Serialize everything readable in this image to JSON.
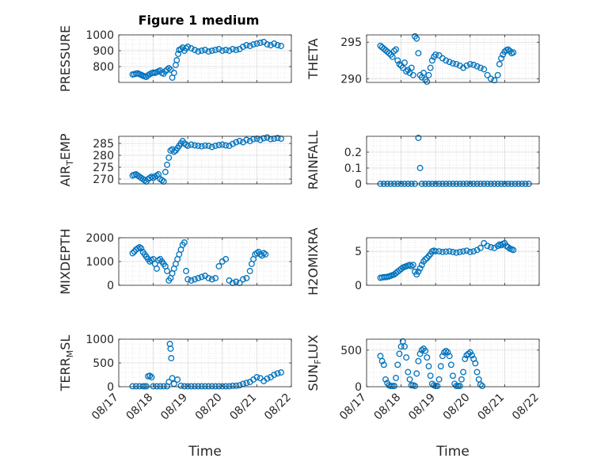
{
  "figure": {
    "title": "Figure 1 medium",
    "marker_color": "#0072BD",
    "x_tick_labels": [
      "08/17",
      "08/18",
      "08/19",
      "08/20",
      "08/21",
      "08/22"
    ],
    "x_label": "Time"
  },
  "chart_data": [
    {
      "type": "scatter",
      "title": "Figure 1 medium",
      "ylabel": "PRESSURE",
      "xlim": [
        17,
        22
      ],
      "ylim": [
        700,
        1000
      ],
      "yticks": [
        800,
        900,
        1000
      ],
      "grid": true,
      "x": [
        17.4,
        17.45,
        17.5,
        17.55,
        17.6,
        17.65,
        17.7,
        17.75,
        17.8,
        17.85,
        17.9,
        17.95,
        18.0,
        18.05,
        18.1,
        18.15,
        18.2,
        18.25,
        18.3,
        18.35,
        18.4,
        18.45,
        18.5,
        18.55,
        18.6,
        18.65,
        18.68,
        18.72,
        18.75,
        18.8,
        18.85,
        18.9,
        18.95,
        19.0,
        19.1,
        19.2,
        19.3,
        19.4,
        19.5,
        19.6,
        19.7,
        19.8,
        19.9,
        20.0,
        20.1,
        20.2,
        20.3,
        20.4,
        20.5,
        20.6,
        20.7,
        20.8,
        20.9,
        21.0,
        21.1,
        21.2,
        21.3,
        21.4,
        21.5,
        21.6,
        21.7
      ],
      "y": [
        750,
        752,
        755,
        758,
        752,
        748,
        742,
        738,
        735,
        745,
        752,
        758,
        762,
        760,
        765,
        770,
        775,
        760,
        755,
        770,
        780,
        790,
        780,
        730,
        760,
        810,
        840,
        880,
        905,
        910,
        920,
        900,
        915,
        925,
        915,
        905,
        895,
        900,
        905,
        895,
        900,
        905,
        910,
        900,
        905,
        900,
        910,
        905,
        910,
        925,
        935,
        930,
        940,
        945,
        950,
        955,
        940,
        935,
        945,
        935,
        930
      ]
    },
    {
      "type": "scatter",
      "ylabel": "THETA",
      "xlim": [
        17,
        22
      ],
      "ylim": [
        289.5,
        296
      ],
      "yticks": [
        290,
        295
      ],
      "grid": true,
      "x": [
        17.4,
        17.45,
        17.5,
        17.55,
        17.6,
        17.65,
        17.7,
        17.75,
        17.8,
        17.85,
        17.9,
        17.95,
        18.0,
        18.05,
        18.1,
        18.15,
        18.2,
        18.25,
        18.3,
        18.35,
        18.4,
        18.45,
        18.5,
        18.55,
        18.6,
        18.65,
        18.7,
        18.75,
        18.8,
        18.85,
        18.9,
        18.95,
        19.0,
        19.1,
        19.2,
        19.3,
        19.4,
        19.5,
        19.6,
        19.7,
        19.8,
        19.9,
        20.0,
        20.1,
        20.2,
        20.3,
        20.4,
        20.5,
        20.6,
        20.7,
        20.8,
        20.85,
        20.9,
        20.95,
        21.0,
        21.05,
        21.1,
        21.15,
        21.2,
        21.25
      ],
      "y": [
        294.5,
        294.3,
        294.1,
        293.9,
        293.7,
        293.5,
        293.3,
        293.0,
        293.8,
        294.0,
        292.5,
        292.0,
        291.8,
        291.5,
        292.2,
        291.0,
        291.2,
        290.8,
        291.5,
        290.5,
        295.8,
        295.5,
        293.5,
        290.5,
        290.2,
        290.8,
        289.9,
        289.6,
        290.5,
        291.5,
        292.5,
        293.0,
        293.3,
        293.2,
        292.8,
        292.5,
        292.3,
        292.1,
        292.0,
        291.8,
        291.5,
        291.8,
        292.0,
        291.9,
        291.7,
        291.5,
        291.3,
        290.5,
        290.0,
        289.8,
        290.5,
        292.0,
        292.8,
        293.3,
        293.7,
        293.9,
        294.0,
        293.8,
        293.5,
        293.6
      ]
    },
    {
      "type": "scatter",
      "ylabel": "AIR_TEMP",
      "xlim": [
        17,
        22
      ],
      "ylim": [
        268,
        288
      ],
      "yticks": [
        270,
        275,
        280,
        285
      ],
      "grid": true,
      "x": [
        17.4,
        17.45,
        17.5,
        17.55,
        17.6,
        17.65,
        17.7,
        17.75,
        17.8,
        17.85,
        17.9,
        17.95,
        18.0,
        18.05,
        18.1,
        18.15,
        18.2,
        18.25,
        18.3,
        18.35,
        18.4,
        18.45,
        18.5,
        18.55,
        18.6,
        18.65,
        18.7,
        18.75,
        18.8,
        18.85,
        18.9,
        18.95,
        19.0,
        19.1,
        19.2,
        19.3,
        19.4,
        19.5,
        19.6,
        19.7,
        19.8,
        19.9,
        20.0,
        20.1,
        20.2,
        20.3,
        20.4,
        20.5,
        20.6,
        20.7,
        20.8,
        20.9,
        21.0,
        21.1,
        21.2,
        21.3,
        21.4,
        21.5,
        21.6,
        21.7
      ],
      "y": [
        271.5,
        271.8,
        272.0,
        271.5,
        271.0,
        270.5,
        270.0,
        269.5,
        269.0,
        270.0,
        270.5,
        271.0,
        270.5,
        271.0,
        271.5,
        272.0,
        270.0,
        269.5,
        269.0,
        273.0,
        276.0,
        279.0,
        282.0,
        282.5,
        281.5,
        282.0,
        283.0,
        284.0,
        285.0,
        286.0,
        285.0,
        284.5,
        284.0,
        284.5,
        284.2,
        284.0,
        283.8,
        284.1,
        284.0,
        283.5,
        284.0,
        284.3,
        284.5,
        284.2,
        284.0,
        284.8,
        285.5,
        286.0,
        285.5,
        286.5,
        286.0,
        286.8,
        287.0,
        286.5,
        287.2,
        287.5,
        286.8,
        287.0,
        287.3,
        287.0
      ]
    },
    {
      "type": "scatter",
      "ylabel": "RAINFALL",
      "xlim": [
        17,
        22
      ],
      "ylim": [
        0,
        0.3
      ],
      "yticks": [
        0,
        0.1,
        0.2
      ],
      "grid": true,
      "x": [
        17.4,
        17.5,
        17.6,
        17.7,
        17.8,
        17.9,
        18.0,
        18.1,
        18.2,
        18.3,
        18.4,
        18.5,
        18.55,
        18.6,
        18.7,
        18.8,
        18.9,
        19.0,
        19.1,
        19.2,
        19.3,
        19.4,
        19.5,
        19.6,
        19.7,
        19.8,
        19.9,
        20.0,
        20.1,
        20.2,
        20.3,
        20.4,
        20.5,
        20.6,
        20.7,
        20.8,
        20.9,
        21.0,
        21.1,
        21.2,
        21.3,
        21.4,
        21.5,
        21.6,
        21.7
      ],
      "y": [
        0,
        0,
        0,
        0,
        0,
        0,
        0,
        0,
        0,
        0,
        0,
        0.29,
        0.1,
        0,
        0,
        0,
        0,
        0,
        0,
        0,
        0,
        0,
        0,
        0,
        0,
        0,
        0,
        0,
        0,
        0,
        0,
        0,
        0,
        0,
        0,
        0,
        0,
        0,
        0,
        0,
        0,
        0,
        0,
        0,
        0
      ]
    },
    {
      "type": "scatter",
      "ylabel": "MIXDEPTH",
      "xlim": [
        17,
        22
      ],
      "ylim": [
        0,
        2000
      ],
      "yticks": [
        0,
        1000,
        2000
      ],
      "grid": true,
      "x": [
        17.4,
        17.45,
        17.5,
        17.55,
        17.6,
        17.65,
        17.7,
        17.75,
        17.8,
        17.85,
        17.9,
        17.95,
        18.0,
        18.05,
        18.1,
        18.15,
        18.2,
        18.25,
        18.3,
        18.35,
        18.4,
        18.45,
        18.5,
        18.55,
        18.6,
        18.65,
        18.7,
        18.75,
        18.8,
        18.85,
        18.9,
        18.95,
        19.0,
        19.1,
        19.2,
        19.3,
        19.4,
        19.5,
        19.6,
        19.7,
        19.8,
        19.9,
        20.0,
        20.1,
        20.2,
        20.3,
        20.4,
        20.5,
        20.6,
        20.7,
        20.8,
        20.85,
        20.9,
        20.95,
        21.0,
        21.05,
        21.1,
        21.15,
        21.2,
        21.25
      ],
      "y": [
        1350,
        1420,
        1500,
        1550,
        1600,
        1550,
        1400,
        1300,
        1200,
        1100,
        1000,
        1050,
        1100,
        900,
        700,
        1050,
        1100,
        1000,
        900,
        800,
        600,
        200,
        300,
        500,
        700,
        900,
        1100,
        1300,
        1500,
        1700,
        1800,
        600,
        250,
        200,
        250,
        300,
        350,
        400,
        300,
        250,
        300,
        800,
        1000,
        1100,
        200,
        100,
        150,
        100,
        250,
        300,
        600,
        900,
        1100,
        1300,
        1350,
        1400,
        1300,
        1250,
        1350,
        1300
      ]
    },
    {
      "type": "scatter",
      "ylabel": "H2OMIXRA",
      "xlim": [
        17,
        22
      ],
      "ylim": [
        0,
        7
      ],
      "yticks": [
        0,
        5
      ],
      "grid": true,
      "x": [
        17.4,
        17.45,
        17.5,
        17.55,
        17.6,
        17.65,
        17.7,
        17.75,
        17.8,
        17.85,
        17.9,
        17.95,
        18.0,
        18.05,
        18.1,
        18.15,
        18.2,
        18.25,
        18.3,
        18.35,
        18.4,
        18.45,
        18.5,
        18.55,
        18.6,
        18.65,
        18.7,
        18.75,
        18.8,
        18.85,
        18.9,
        18.95,
        19.0,
        19.1,
        19.2,
        19.3,
        19.4,
        19.5,
        19.6,
        19.7,
        19.8,
        19.9,
        20.0,
        20.1,
        20.2,
        20.3,
        20.4,
        20.5,
        20.6,
        20.7,
        20.8,
        20.85,
        20.9,
        20.95,
        21.0,
        21.05,
        21.1,
        21.15,
        21.2,
        21.25
      ],
      "y": [
        1.1,
        1.15,
        1.2,
        1.2,
        1.25,
        1.3,
        1.4,
        1.5,
        1.6,
        1.8,
        2.0,
        2.2,
        2.4,
        2.6,
        2.7,
        2.8,
        2.9,
        3.0,
        2.8,
        3.0,
        2.0,
        1.6,
        2.0,
        2.5,
        3.0,
        3.5,
        3.8,
        4.0,
        4.3,
        4.6,
        5.0,
        5.1,
        5.0,
        5.0,
        4.9,
        4.95,
        5.0,
        4.9,
        4.8,
        4.9,
        5.0,
        5.1,
        4.9,
        5.0,
        5.2,
        5.5,
        6.2,
        5.8,
        5.6,
        5.5,
        5.8,
        6.0,
        5.9,
        6.1,
        6.2,
        5.8,
        5.6,
        5.4,
        5.3,
        5.2
      ]
    },
    {
      "type": "scatter",
      "ylabel": "TERR_MSL",
      "xlim": [
        17,
        22
      ],
      "ylim": [
        0,
        1000
      ],
      "yticks": [
        0,
        500,
        1000
      ],
      "grid": true,
      "x": [
        17.4,
        17.5,
        17.6,
        17.7,
        17.75,
        17.8,
        17.85,
        17.9,
        17.95,
        18.0,
        18.1,
        18.2,
        18.3,
        18.4,
        18.45,
        18.48,
        18.5,
        18.52,
        18.55,
        18.6,
        18.7,
        18.8,
        18.9,
        19.0,
        19.1,
        19.2,
        19.3,
        19.4,
        19.5,
        19.6,
        19.7,
        19.8,
        19.9,
        20.0,
        20.1,
        20.2,
        20.3,
        20.4,
        20.5,
        20.6,
        20.7,
        20.8,
        20.9,
        21.0,
        21.1,
        21.2,
        21.3,
        21.4,
        21.5,
        21.6,
        21.7
      ],
      "y": [
        10,
        10,
        10,
        10,
        10,
        10,
        220,
        230,
        200,
        10,
        10,
        10,
        10,
        10,
        100,
        900,
        800,
        600,
        180,
        60,
        150,
        20,
        10,
        10,
        10,
        10,
        10,
        10,
        10,
        10,
        10,
        10,
        10,
        10,
        10,
        10,
        20,
        20,
        30,
        60,
        80,
        100,
        150,
        200,
        180,
        120,
        170,
        200,
        250,
        280,
        300
      ]
    },
    {
      "type": "scatter",
      "ylabel": "SUN_FLUX",
      "xlim": [
        17,
        22
      ],
      "ylim": [
        0,
        650
      ],
      "yticks": [
        0,
        500
      ],
      "grid": true,
      "x": [
        17.4,
        17.45,
        17.5,
        17.55,
        17.6,
        17.65,
        17.7,
        17.75,
        17.8,
        17.85,
        17.9,
        17.95,
        18.0,
        18.05,
        18.1,
        18.15,
        18.2,
        18.25,
        18.3,
        18.35,
        18.4,
        18.45,
        18.5,
        18.55,
        18.6,
        18.65,
        18.7,
        18.75,
        18.8,
        18.85,
        18.9,
        18.95,
        19.0,
        19.05,
        19.1,
        19.15,
        19.2,
        19.25,
        19.3,
        19.35,
        19.4,
        19.45,
        19.5,
        19.55,
        19.6,
        19.65,
        19.7,
        19.75,
        19.8,
        19.85,
        19.9,
        19.95,
        20.0,
        20.05,
        20.1,
        20.15,
        20.2,
        20.25,
        20.3,
        20.35
      ],
      "y": [
        420,
        350,
        300,
        100,
        50,
        20,
        10,
        10,
        10,
        120,
        300,
        450,
        550,
        620,
        550,
        400,
        200,
        100,
        20,
        20,
        10,
        180,
        350,
        450,
        500,
        520,
        490,
        400,
        280,
        150,
        40,
        20,
        10,
        10,
        100,
        280,
        420,
        470,
        490,
        470,
        420,
        300,
        150,
        40,
        10,
        10,
        10,
        100,
        200,
        380,
        430,
        450,
        470,
        430,
        380,
        320,
        200,
        100,
        30,
        10
      ]
    }
  ]
}
